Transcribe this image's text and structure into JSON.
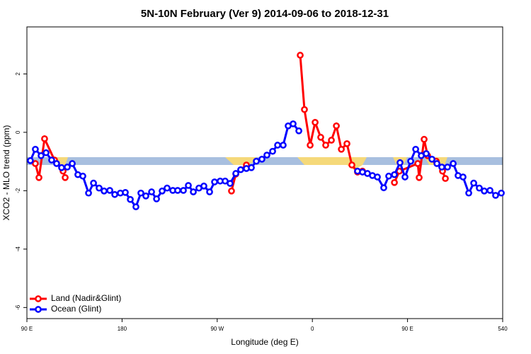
{
  "chart_data": {
    "type": "line",
    "title": "5N-10N February (Ver 9)   2014-09-06 to 2018-12-31",
    "x_label": "Longitude (deg E)",
    "y_label": "XCO2 - MLO trend (ppm)",
    "xlim": [
      90,
      540
    ],
    "xticks": [
      {
        "value": 90,
        "label": "90 E"
      },
      180,
      {
        "value": 270,
        "label": "90 W"
      },
      {
        "value": 360,
        "label": "0"
      },
      {
        "value": 450,
        "label": "90 E"
      },
      540
    ],
    "ylim": [
      -6.38,
      3.61
    ],
    "yticks": [
      -6,
      -4,
      -2,
      0,
      2
    ],
    "legend": "bottomleft",
    "series": [
      {
        "name": "Land (Nadir&Glint)",
        "color": "#ff0000",
        "x": [
          98.0,
          101.4,
          106.7,
          116.1,
          124.2,
          126.2,
          200,
          283.5,
          287.6,
          297.6,
          320,
          348.5,
          352.5,
          357.9,
          362.6,
          367.9,
          372.6,
          378.0,
          382.7,
          387.4,
          392.7,
          397.4,
          402.7,
          407.4,
          420,
          437.6,
          442.3,
          459.7,
          461.0,
          465.7,
          469.0,
          477.1,
          483.1,
          485.8
        ],
        "values": [
          -1.07,
          -1.55,
          -0.22,
          -0.95,
          -1.33,
          -1.55,
          null,
          -2.01,
          -1.43,
          -1.12,
          null,
          2.64,
          0.78,
          -0.44,
          0.34,
          -0.17,
          -0.44,
          -0.27,
          0.22,
          -0.58,
          -0.39,
          -1.12,
          -1.36,
          -1.33,
          null,
          -1.72,
          -1.33,
          -1.07,
          -1.55,
          -0.24,
          -0.8,
          -0.99,
          -1.33,
          -1.58
        ]
      },
      {
        "name": "Ocean (Glint)",
        "color": "#0000ff",
        "x": [
          93.3,
          98.0,
          103.4,
          108.1,
          113.4,
          118.1,
          122.8,
          128.2,
          132.9,
          138.2,
          142.9,
          148.3,
          153.0,
          158.3,
          163.0,
          168.4,
          173.1,
          178.4,
          183.1,
          187.8,
          193.1,
          197.8,
          202.5,
          207.9,
          212.6,
          217.9,
          222.6,
          228.0,
          232.6,
          238.0,
          242.7,
          247.4,
          252.7,
          257.4,
          262.8,
          267.5,
          272.8,
          277.5,
          282.2,
          287.6,
          292.2,
          297.6,
          302.3,
          307.0,
          312.3,
          317.0,
          322.4,
          327.1,
          332.4,
          337.1,
          341.8,
          347.2,
          375,
          402.7,
          407.4,
          412.1,
          416.8,
          421.5,
          427.5,
          432.2,
          437.6,
          442.9,
          447.6,
          453.0,
          457.7,
          463.0,
          467.7,
          473.1,
          477.8,
          482.4,
          487.8,
          493.2,
          497.8,
          502.5,
          507.9,
          512.6,
          517.9,
          522.6,
          528.0,
          533.3,
          538.7
        ],
        "values": [
          -0.97,
          -0.58,
          -0.8,
          -0.7,
          -0.95,
          -1.07,
          -1.21,
          -1.19,
          -1.07,
          -1.45,
          -1.5,
          -2.08,
          -1.74,
          -1.91,
          -2.01,
          -1.99,
          -2.13,
          -2.08,
          -2.06,
          -2.3,
          -2.55,
          -2.08,
          -2.18,
          -2.04,
          -2.28,
          -2.01,
          -1.91,
          -1.99,
          -1.99,
          -1.99,
          -1.82,
          -2.04,
          -1.91,
          -1.84,
          -2.04,
          -1.7,
          -1.67,
          -1.67,
          -1.75,
          -1.41,
          -1.28,
          -1.24,
          -1.21,
          -0.99,
          -0.92,
          -0.78,
          -0.65,
          -0.44,
          -0.44,
          0.22,
          0.29,
          0.05,
          null,
          -1.33,
          -1.36,
          -1.41,
          -1.48,
          -1.53,
          -1.9,
          -1.5,
          -1.45,
          -1.04,
          -1.53,
          -0.99,
          -0.58,
          -0.8,
          -0.73,
          -0.92,
          -1.07,
          -1.19,
          -1.19,
          -1.07,
          -1.48,
          -1.53,
          -2.08,
          -1.74,
          -1.91,
          -2.01,
          -1.99,
          -2.16,
          -2.08
        ]
      }
    ]
  }
}
